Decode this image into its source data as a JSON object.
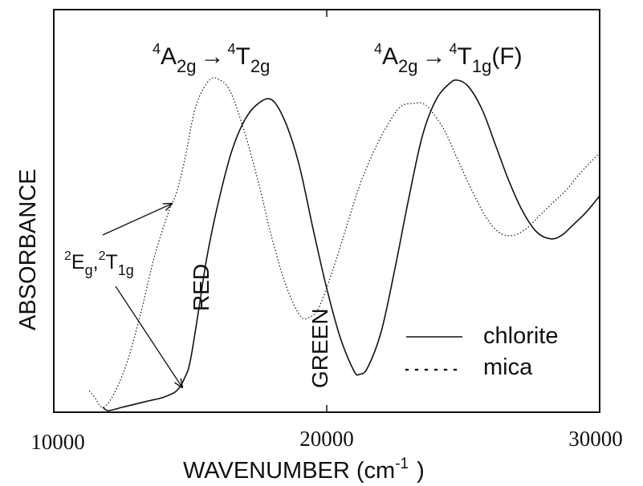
{
  "chart_data": {
    "type": "line",
    "xlabel": "WAVENUMBER (cm",
    "xlabel_sup": "-1",
    "xlabel_close": ")",
    "ylabel": "ABSORBANCE",
    "xlim": [
      10000,
      30000
    ],
    "ylim": [
      0,
      1
    ],
    "y_ticks_shown": false,
    "grid": false,
    "legend_position": "bottom-right",
    "x_ticks": [
      {
        "value": 10000,
        "label": "10000"
      },
      {
        "value": 20000,
        "label": "20000"
      },
      {
        "value": 30000,
        "label": "30000"
      }
    ],
    "series": [
      {
        "name": "chlorite",
        "style": "solid",
        "x": [
          11800,
          12000,
          12500,
          13000,
          13500,
          14000,
          14500,
          14800,
          15000,
          15300,
          15600,
          16000,
          16500,
          17000,
          17500,
          18000,
          18500,
          19000,
          19500,
          20000,
          20500,
          21000,
          21200,
          21500,
          22000,
          22500,
          23000,
          23500,
          24000,
          24500,
          24800,
          25200,
          25700,
          26200,
          26700,
          27200,
          27700,
          28200,
          28600,
          29000,
          29500,
          30000
        ],
        "y": [
          0.01,
          0.0,
          0.01,
          0.02,
          0.03,
          0.04,
          0.06,
          0.1,
          0.15,
          0.3,
          0.46,
          0.62,
          0.78,
          0.88,
          0.93,
          0.94,
          0.87,
          0.74,
          0.55,
          0.37,
          0.22,
          0.12,
          0.11,
          0.13,
          0.24,
          0.43,
          0.64,
          0.83,
          0.94,
          0.99,
          1.0,
          0.98,
          0.91,
          0.8,
          0.69,
          0.6,
          0.54,
          0.52,
          0.53,
          0.56,
          0.6,
          0.65
        ]
      },
      {
        "name": "mica",
        "style": "dotted",
        "x": [
          11300,
          11500,
          11800,
          12200,
          12700,
          13200,
          13700,
          14200,
          14500,
          14800,
          15200,
          15700,
          16100,
          16500,
          17000,
          17500,
          18000,
          18500,
          19000,
          19300,
          19700,
          20200,
          20700,
          21200,
          21700,
          22200,
          22700,
          23200,
          23500,
          23800,
          24300,
          24800,
          25300,
          25800,
          26300,
          26800,
          27300,
          27800,
          28300,
          28800,
          29300,
          30000
        ],
        "y": [
          0.06,
          0.04,
          0.01,
          0.05,
          0.15,
          0.3,
          0.47,
          0.6,
          0.66,
          0.76,
          0.92,
          1.0,
          1.0,
          0.96,
          0.84,
          0.69,
          0.52,
          0.38,
          0.29,
          0.28,
          0.31,
          0.42,
          0.55,
          0.68,
          0.78,
          0.86,
          0.92,
          0.93,
          0.93,
          0.91,
          0.85,
          0.76,
          0.67,
          0.59,
          0.54,
          0.53,
          0.55,
          0.59,
          0.63,
          0.67,
          0.72,
          0.78
        ]
      }
    ],
    "annotations": [
      {
        "id": "t2g",
        "sup": "4",
        "base": "A",
        "sub": "2g",
        "arrow": "→",
        "sup2": "4",
        "base2": "T",
        "sub2": "2g",
        "tail": ""
      },
      {
        "id": "t1g",
        "sup": "4",
        "base": "A",
        "sub": "2g",
        "arrow": "→",
        "sup2": "4",
        "base2": "T",
        "sub2": "1g",
        "tail": "(F)"
      },
      {
        "id": "eg",
        "sup": "2",
        "base": "E",
        "sub": "g",
        "sep": ",",
        "sup2": "2",
        "base2": "T",
        "sub2": "1g"
      },
      {
        "id": "red",
        "text": "RED"
      },
      {
        "id": "green",
        "text": "GREEN"
      }
    ]
  }
}
